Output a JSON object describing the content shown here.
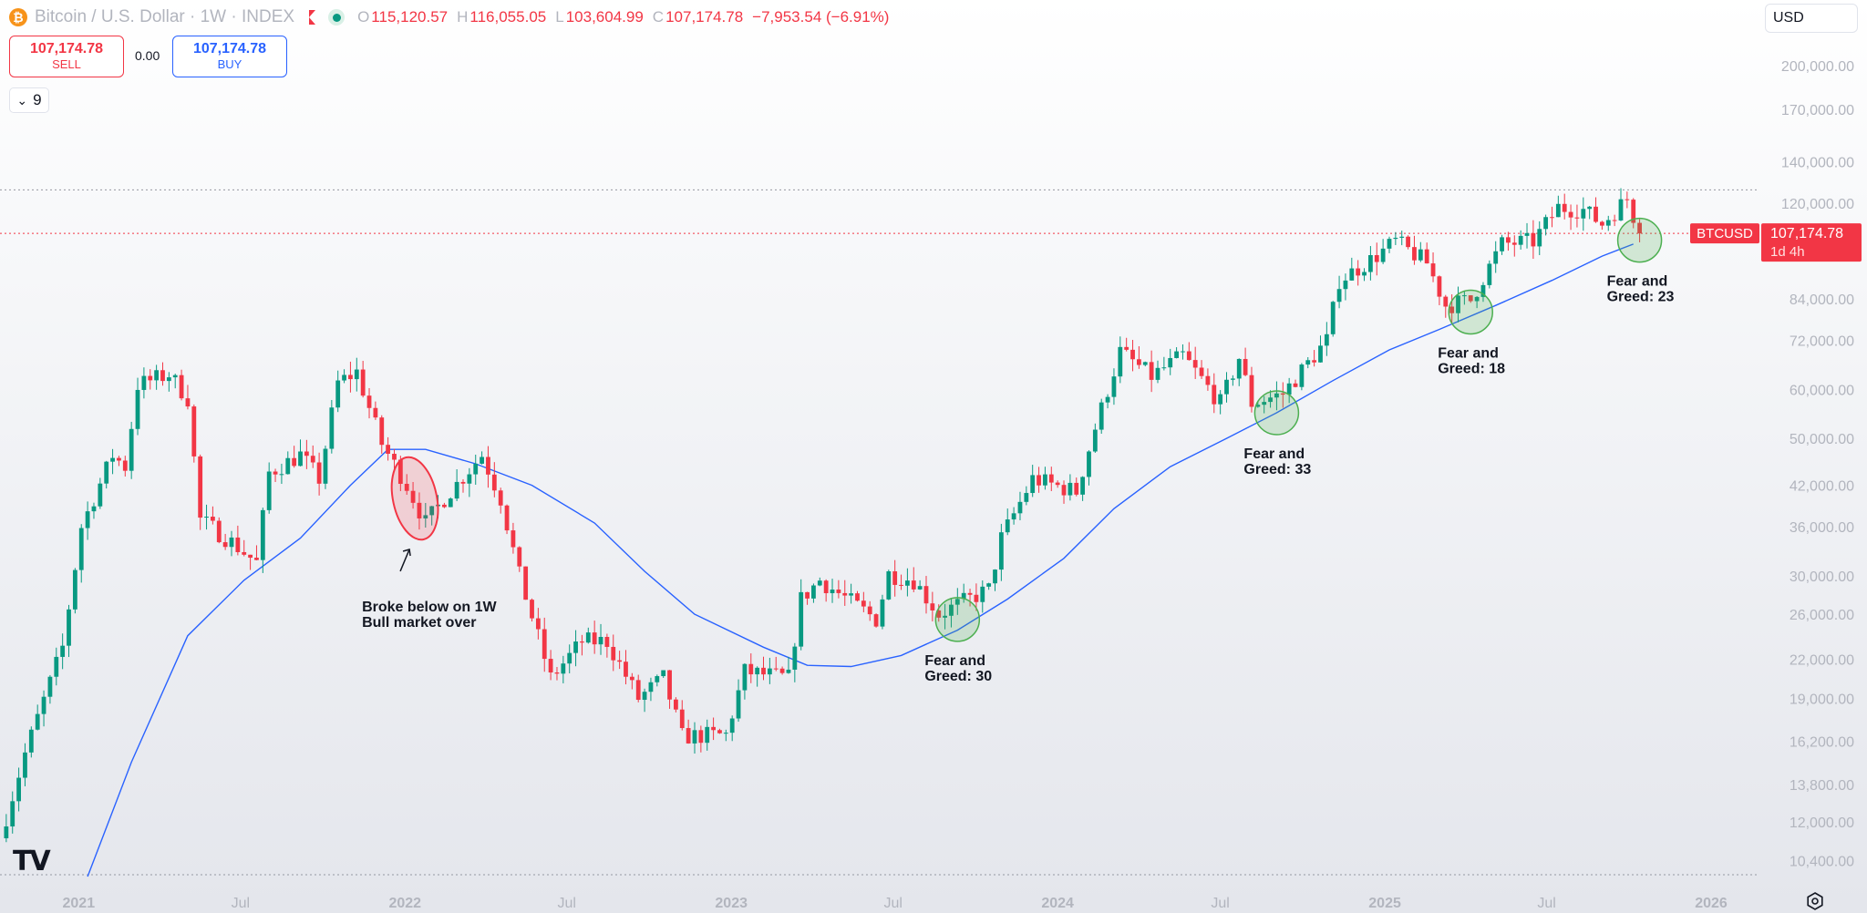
{
  "header": {
    "logo_glyph": "₿",
    "title": "Bitcoin / U.S. Dollar · 1W · INDEX",
    "open_key": "O",
    "open": "115,120.57",
    "high_key": "H",
    "high": "116,055.05",
    "low_key": "L",
    "low": "103,604.99",
    "close_key": "C",
    "close": "107,174.78",
    "change": "−7,953.54 (−6.91%)"
  },
  "trade": {
    "sell_price": "107,174.78",
    "sell_label": "SELL",
    "spread": "0.00",
    "buy_price": "107,174.78",
    "buy_label": "BUY"
  },
  "indicator_toggle": {
    "chevron": "⌄",
    "count": "9"
  },
  "currency": {
    "selected": "USD"
  },
  "logo": "TV",
  "colors": {
    "up": "#089981",
    "down": "#f23645",
    "ma": "#2962ff",
    "circle_green": "#4caf50",
    "circle_red": "#f23645",
    "price_tag": "#f23645"
  },
  "chart_data": {
    "type": "candlestick",
    "symbol": "BTCUSD",
    "interval": "1W",
    "y_scale": "log",
    "ylim": [
      9800,
      226000
    ],
    "xlim": [
      "2020-10-05",
      "2026-02-24"
    ],
    "y_ticks": [
      {
        "value": 200000,
        "label": "200,000.00"
      },
      {
        "value": 170000,
        "label": "170,000.00"
      },
      {
        "value": 140000,
        "label": "140,000.00"
      },
      {
        "value": 120000,
        "label": "120,000.00"
      },
      {
        "value": 84000,
        "label": "84,000.00"
      },
      {
        "value": 72000,
        "label": "72,000.00"
      },
      {
        "value": 60000,
        "label": "60,000.00"
      },
      {
        "value": 50000,
        "label": "50,000.00"
      },
      {
        "value": 42000,
        "label": "42,000.00"
      },
      {
        "value": 36000,
        "label": "36,000.00"
      },
      {
        "value": 30000,
        "label": "30,000.00"
      },
      {
        "value": 26000,
        "label": "26,000.00"
      },
      {
        "value": 22000,
        "label": "22,000.00"
      },
      {
        "value": 19000,
        "label": "19,000.00"
      },
      {
        "value": 16200,
        "label": "16,200.00"
      },
      {
        "value": 13800,
        "label": "13,800.00"
      },
      {
        "value": 12000,
        "label": "12,000.00"
      },
      {
        "value": 10400,
        "label": "10,400.00"
      }
    ],
    "x_ticks": [
      {
        "date": "2021-01-01",
        "label": "2021",
        "bold": true
      },
      {
        "date": "2021-07-01",
        "label": "Jul",
        "bold": false
      },
      {
        "date": "2022-01-01",
        "label": "2022",
        "bold": true
      },
      {
        "date": "2022-07-01",
        "label": "Jul",
        "bold": false
      },
      {
        "date": "2023-01-01",
        "label": "2023",
        "bold": true
      },
      {
        "date": "2023-07-01",
        "label": "Jul",
        "bold": false
      },
      {
        "date": "2024-01-01",
        "label": "2024",
        "bold": true
      },
      {
        "date": "2024-07-01",
        "label": "Jul",
        "bold": false
      },
      {
        "date": "2025-01-01",
        "label": "2025",
        "bold": true
      },
      {
        "date": "2025-07-01",
        "label": "Jul",
        "bold": false
      },
      {
        "date": "2026-01-01",
        "label": "2026",
        "bold": true
      }
    ],
    "close_path": [
      [
        "2020-10-05",
        11300
      ],
      [
        "2020-11-02",
        15500
      ],
      [
        "2020-12-14",
        23000
      ],
      [
        "2021-01-04",
        36000
      ],
      [
        "2021-02-08",
        47000
      ],
      [
        "2021-02-22",
        45000
      ],
      [
        "2021-03-08",
        61000
      ],
      [
        "2021-04-12",
        63500
      ],
      [
        "2021-05-03",
        58000
      ],
      [
        "2021-05-17",
        37000
      ],
      [
        "2021-06-21",
        34000
      ],
      [
        "2021-07-19",
        31500
      ],
      [
        "2021-08-02",
        44000
      ],
      [
        "2021-09-06",
        47000
      ],
      [
        "2021-09-27",
        43000
      ],
      [
        "2021-10-18",
        61500
      ],
      [
        "2021-11-08",
        64000
      ],
      [
        "2021-12-06",
        49000
      ],
      [
        "2022-01-03",
        42000
      ],
      [
        "2022-01-24",
        36500
      ],
      [
        "2022-02-14",
        40000
      ],
      [
        "2022-03-28",
        47000
      ],
      [
        "2022-04-18",
        40000
      ],
      [
        "2022-05-09",
        30000
      ],
      [
        "2022-06-13",
        20500
      ],
      [
        "2022-07-18",
        23500
      ],
      [
        "2022-08-15",
        23500
      ],
      [
        "2022-09-19",
        19000
      ],
      [
        "2022-10-17",
        20500
      ],
      [
        "2022-11-07",
        16500
      ],
      [
        "2022-12-26",
        16600
      ],
      [
        "2023-01-16",
        21000
      ],
      [
        "2023-03-06",
        20500
      ],
      [
        "2023-03-20",
        27500
      ],
      [
        "2023-04-10",
        29500
      ],
      [
        "2023-06-12",
        25500
      ],
      [
        "2023-06-26",
        30200
      ],
      [
        "2023-07-24",
        29500
      ],
      [
        "2023-08-21",
        26000
      ],
      [
        "2023-10-16",
        28500
      ],
      [
        "2023-10-30",
        34500
      ],
      [
        "2023-12-04",
        43000
      ],
      [
        "2024-01-22",
        41000
      ],
      [
        "2024-02-12",
        52000
      ],
      [
        "2024-03-11",
        69000
      ],
      [
        "2024-04-15",
        63000
      ],
      [
        "2024-05-20",
        68000
      ],
      [
        "2024-07-01",
        57000
      ],
      [
        "2024-07-22",
        67500
      ],
      [
        "2024-08-05",
        57000
      ],
      [
        "2024-09-09",
        59000
      ],
      [
        "2024-10-28",
        72000
      ],
      [
        "2024-11-11",
        90000
      ],
      [
        "2024-12-16",
        97000
      ],
      [
        "2025-01-13",
        104000
      ],
      [
        "2025-02-17",
        96000
      ],
      [
        "2025-03-10",
        82000
      ],
      [
        "2025-04-07",
        83500
      ],
      [
        "2025-05-12",
        103000
      ],
      [
        "2025-06-16",
        104000
      ],
      [
        "2025-07-14",
        118000
      ],
      [
        "2025-08-11",
        117000
      ],
      [
        "2025-09-01",
        111000
      ],
      [
        "2025-09-29",
        122000
      ],
      [
        "2025-10-13",
        107174.78
      ]
    ],
    "moving_average": [
      [
        "2021-01-11",
        9800
      ],
      [
        "2021-03-01",
        15000
      ],
      [
        "2021-05-03",
        24000
      ],
      [
        "2021-07-05",
        29500
      ],
      [
        "2021-09-06",
        34500
      ],
      [
        "2021-11-01",
        42000
      ],
      [
        "2021-12-13",
        48000
      ],
      [
        "2022-01-24",
        48000
      ],
      [
        "2022-03-21",
        45500
      ],
      [
        "2022-05-23",
        42000
      ],
      [
        "2022-08-01",
        36500
      ],
      [
        "2022-09-26",
        30500
      ],
      [
        "2022-11-21",
        26000
      ],
      [
        "2023-02-06",
        23000
      ],
      [
        "2023-03-27",
        21500
      ],
      [
        "2023-05-15",
        21400
      ],
      [
        "2023-07-10",
        22300
      ],
      [
        "2023-09-11",
        24500
      ],
      [
        "2023-11-06",
        27500
      ],
      [
        "2024-01-08",
        32000
      ],
      [
        "2024-03-04",
        38500
      ],
      [
        "2024-05-06",
        45000
      ],
      [
        "2024-07-08",
        50000
      ],
      [
        "2024-09-02",
        55000
      ],
      [
        "2024-11-04",
        62000
      ],
      [
        "2025-01-06",
        69500
      ],
      [
        "2025-03-03",
        75000
      ],
      [
        "2025-05-05",
        82000
      ],
      [
        "2025-07-07",
        90000
      ],
      [
        "2025-09-01",
        98500
      ],
      [
        "2025-10-06",
        103000
      ]
    ],
    "last_price": {
      "value": 107174.78,
      "symbol_label": "BTCUSD",
      "price_label": "107,174.78",
      "countdown": "1d 4h"
    },
    "resistance": {
      "value": 126000
    },
    "annotations": [
      {
        "date": "2022-01-10",
        "value": 40000,
        "label_lines": [
          "Broke below on 1W",
          "Bull market over"
        ],
        "kind": "break"
      },
      {
        "date": "2023-09-11",
        "value": 25500,
        "label_lines": [
          "Fear and",
          "Greed: 30"
        ],
        "kind": "fear-greed"
      },
      {
        "date": "2024-09-02",
        "value": 55000,
        "label_lines": [
          "Fear and",
          "Greed: 33"
        ],
        "kind": "fear-greed"
      },
      {
        "date": "2025-04-07",
        "value": 80000,
        "label_lines": [
          "Fear and",
          "Greed: 18"
        ],
        "kind": "fear-greed"
      },
      {
        "date": "2025-10-13",
        "value": 104500,
        "label_lines": [
          "Fear and",
          "Greed: 23"
        ],
        "kind": "fear-greed"
      }
    ]
  }
}
